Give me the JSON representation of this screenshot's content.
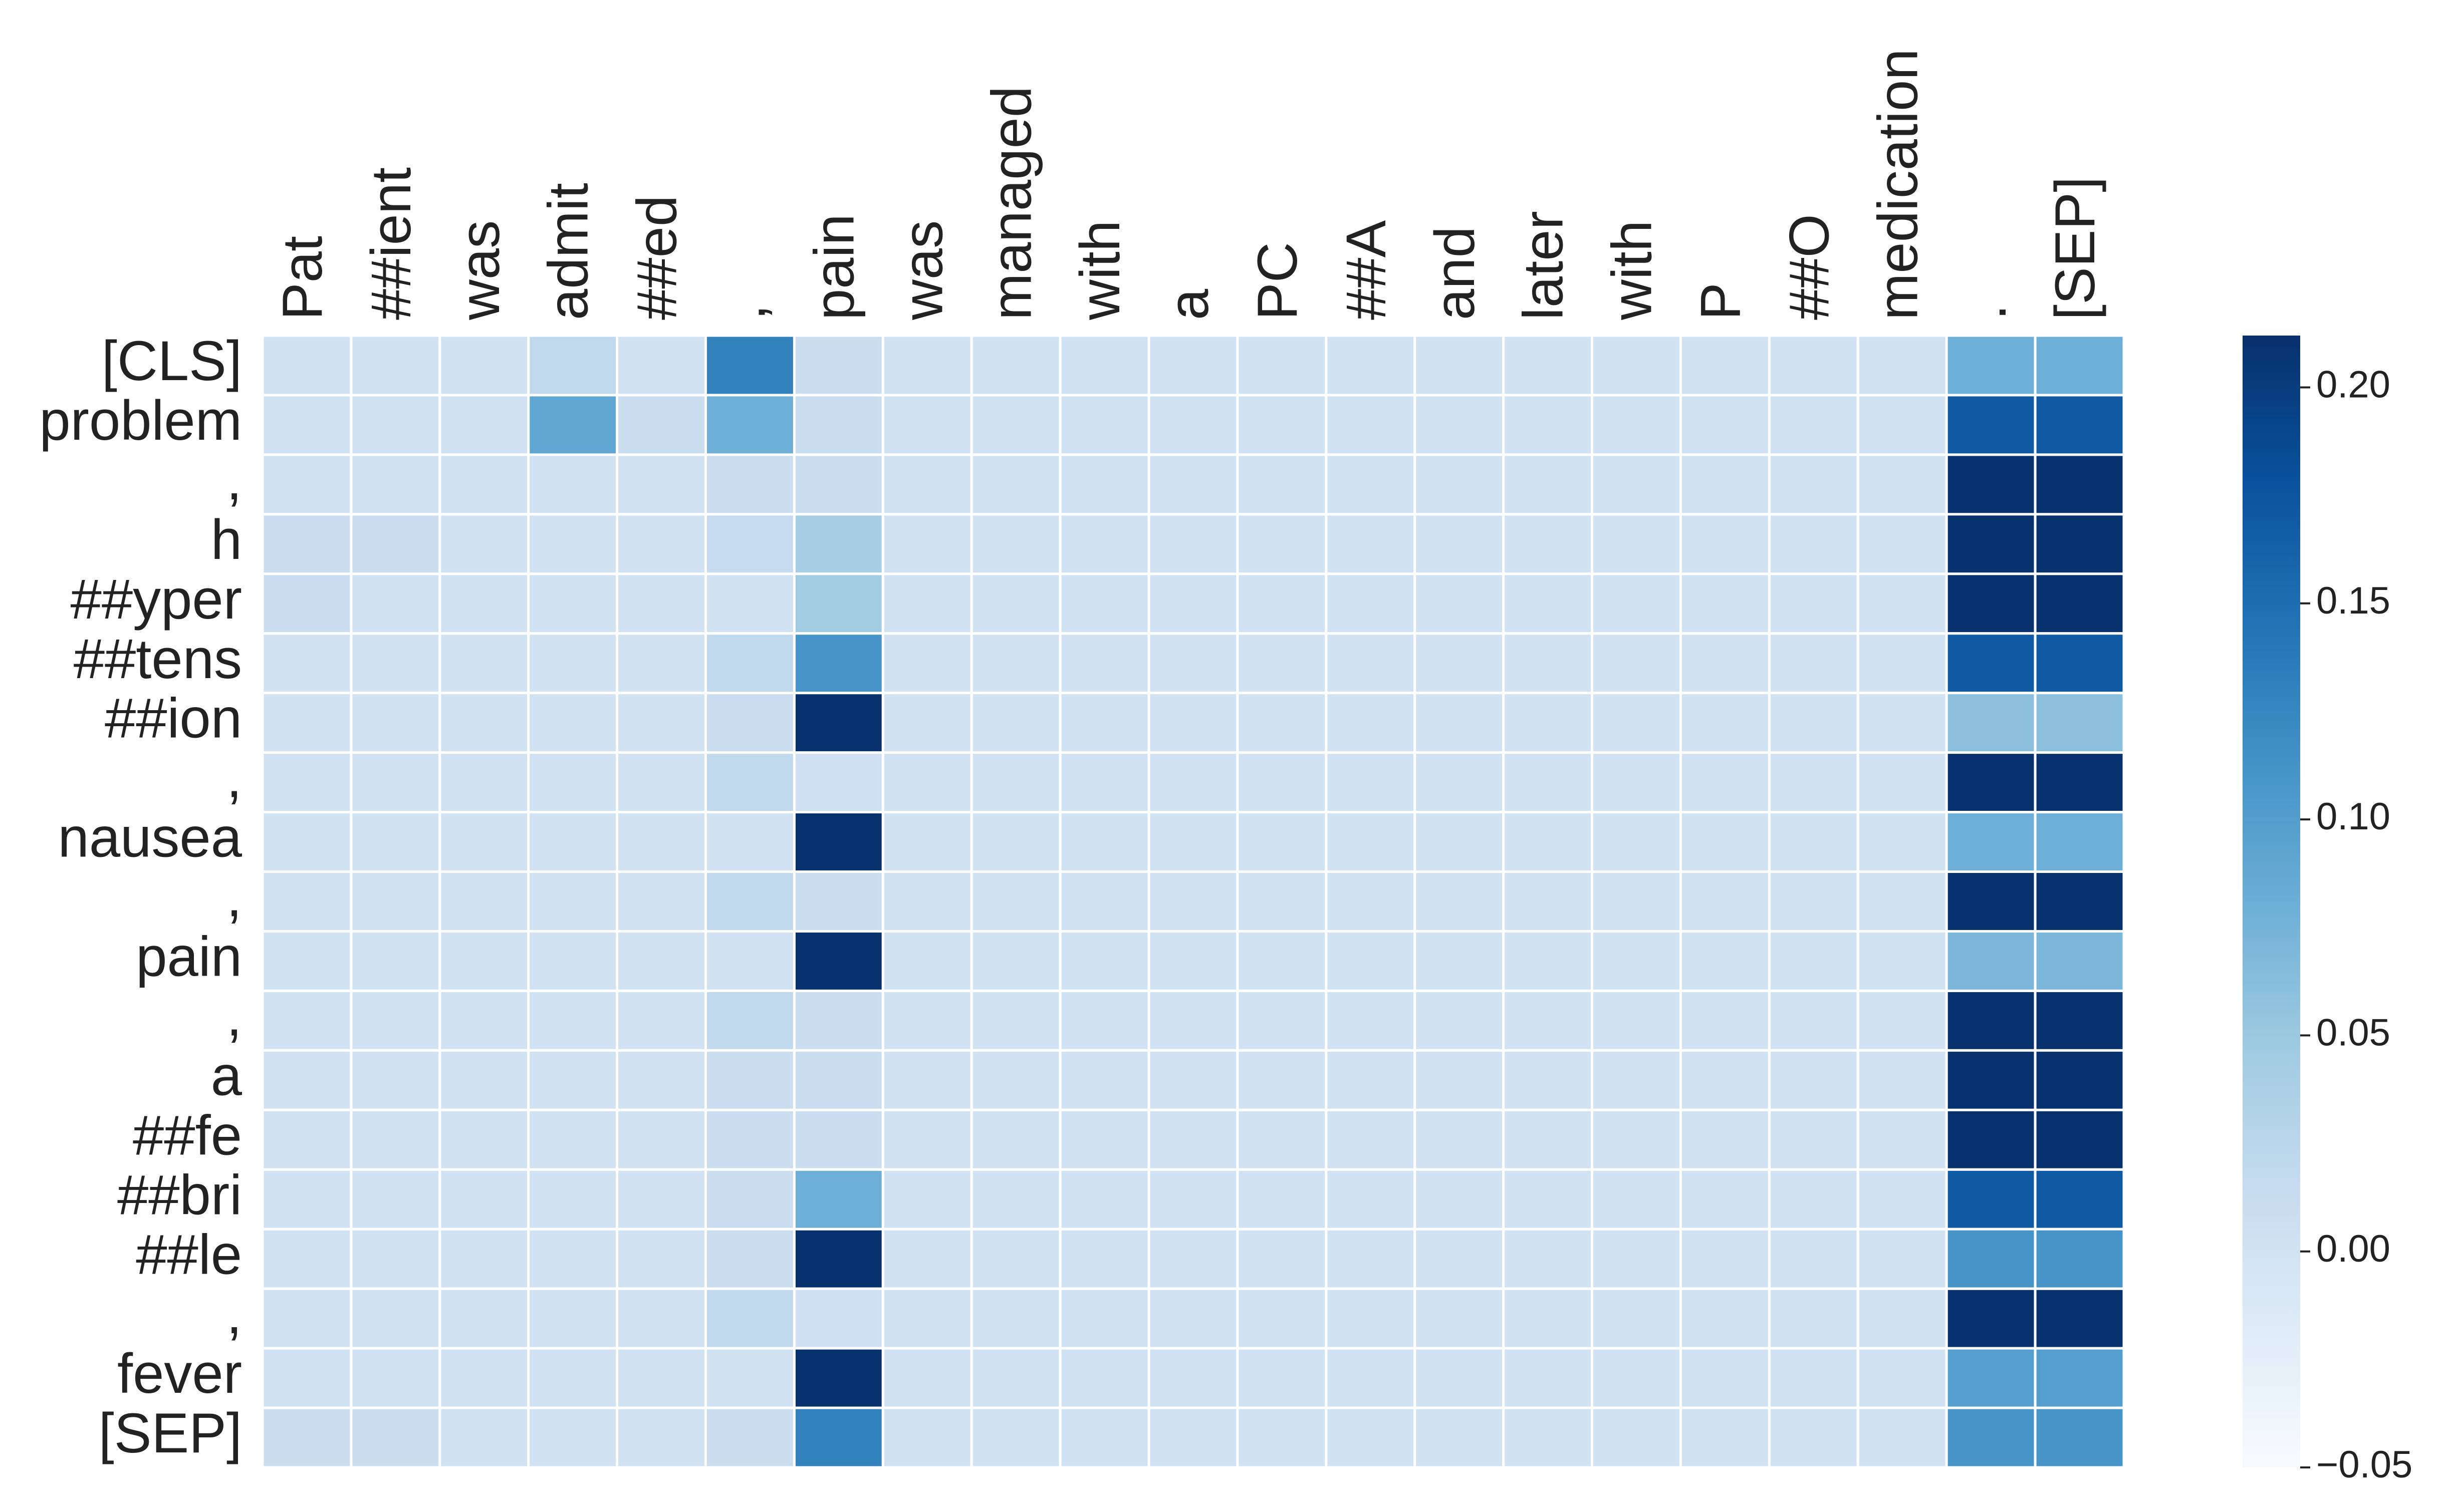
{
  "chart_data": {
    "type": "heatmap",
    "x_categories": [
      "Pat",
      "##ient",
      "was",
      "admit",
      "##ed",
      ",",
      "pain",
      "was",
      "managed",
      "with",
      "a",
      "PC",
      "##A",
      "and",
      "later",
      "with",
      "P",
      "##O",
      "medication",
      ".",
      "[SEP]"
    ],
    "y_categories": [
      "[CLS]",
      "problem",
      ",",
      "h",
      "##yper",
      "##tens",
      "##ion",
      ",",
      "nausea",
      ",",
      "pain",
      ",",
      "a",
      "##fe",
      "##bri",
      "##le",
      ",",
      "fever",
      "[SEP]"
    ],
    "values": [
      [
        0,
        0,
        0,
        0.02,
        0,
        0.13,
        0.01,
        0,
        0,
        0,
        0,
        0,
        0,
        0,
        0,
        0,
        0,
        0,
        0,
        0.08,
        0.08
      ],
      [
        0,
        0,
        0,
        0.09,
        0.01,
        0.08,
        0.01,
        0,
        0,
        0,
        0,
        0,
        0,
        0,
        0,
        0,
        0,
        0,
        0,
        0.17,
        0.17
      ],
      [
        0,
        0,
        0,
        0,
        0,
        0.01,
        0.01,
        0,
        0,
        0,
        0,
        0,
        0,
        0,
        0,
        0,
        0,
        0,
        0,
        0.21,
        0.21
      ],
      [
        0.01,
        0.01,
        0,
        0,
        0,
        0.015,
        0.04,
        0,
        0,
        0,
        0,
        0,
        0,
        0,
        0,
        0,
        0,
        0,
        0,
        0.21,
        0.21
      ],
      [
        0.01,
        0,
        0,
        0,
        0,
        0,
        0.045,
        0,
        0,
        0,
        0,
        0,
        0,
        0,
        0,
        0,
        0,
        0,
        0,
        0.21,
        0.21
      ],
      [
        0,
        0,
        0,
        0,
        0,
        0.02,
        0.11,
        0,
        0,
        0,
        0,
        0,
        0,
        0,
        0,
        0,
        0,
        0,
        0,
        0.17,
        0.17
      ],
      [
        0,
        0,
        0,
        0,
        0,
        0.01,
        0.21,
        0,
        0,
        0,
        0,
        0,
        0,
        0,
        0,
        0,
        0,
        0,
        0,
        0.06,
        0.06
      ],
      [
        0,
        0,
        0,
        0,
        0,
        0.02,
        0.005,
        0,
        0,
        0,
        0,
        0,
        0,
        0,
        0,
        0,
        0,
        0,
        0,
        0.21,
        0.21
      ],
      [
        0,
        0,
        0,
        0,
        0,
        0,
        0.21,
        0,
        0,
        0,
        0,
        0,
        0,
        0,
        0,
        0,
        0,
        0,
        0,
        0.08,
        0.08
      ],
      [
        0,
        0,
        0,
        0,
        0,
        0.02,
        0.01,
        0,
        0,
        0,
        0,
        0,
        0,
        0,
        0,
        0,
        0,
        0,
        0,
        0.21,
        0.21
      ],
      [
        0,
        0,
        0,
        0,
        0,
        0,
        0.21,
        0,
        0,
        0,
        0,
        0,
        0,
        0,
        0,
        0,
        0,
        0,
        0,
        0.07,
        0.07
      ],
      [
        0,
        0,
        0,
        0,
        0,
        0.02,
        0.01,
        0,
        0,
        0,
        0,
        0,
        0,
        0,
        0,
        0,
        0,
        0,
        0,
        0.21,
        0.21
      ],
      [
        0,
        0,
        0,
        0,
        0,
        0.01,
        0.01,
        0,
        0,
        0,
        0,
        0,
        0,
        0,
        0,
        0,
        0,
        0,
        0,
        0.21,
        0.21
      ],
      [
        0,
        0,
        0,
        0,
        0,
        0.01,
        0.01,
        0,
        0,
        0,
        0,
        0,
        0,
        0,
        0,
        0,
        0,
        0,
        0,
        0.21,
        0.21
      ],
      [
        0,
        0,
        0,
        0,
        0,
        0.01,
        0.08,
        0,
        0,
        0,
        0,
        0,
        0,
        0,
        0,
        0,
        0,
        0,
        0,
        0.17,
        0.17
      ],
      [
        0,
        0,
        0,
        0,
        0,
        0.01,
        0.21,
        0,
        0,
        0,
        0,
        0,
        0,
        0,
        0,
        0,
        0,
        0,
        0,
        0.11,
        0.11
      ],
      [
        0,
        0,
        0,
        0,
        0,
        0.02,
        0.005,
        0,
        0,
        0,
        0,
        0,
        0,
        0,
        0,
        0,
        0,
        0,
        0,
        0.21,
        0.21
      ],
      [
        0,
        0,
        0,
        0,
        0,
        0,
        0.21,
        0,
        0,
        0,
        0,
        0,
        0,
        0,
        0,
        0,
        0,
        0,
        0,
        0.1,
        0.1
      ],
      [
        0.01,
        0.01,
        0,
        0,
        0,
        0.01,
        0.13,
        0,
        0,
        0,
        0,
        0,
        0,
        0,
        0,
        0,
        0,
        0,
        0,
        0.11,
        0.11
      ]
    ],
    "colormap": [
      "#f7fbff",
      "#deebf7",
      "#c6dbef",
      "#9ecae1",
      "#6baed6",
      "#4292c6",
      "#2171b5",
      "#08519c",
      "#08306b"
    ],
    "clim": [
      -0.05,
      0.212
    ],
    "cticks": [
      {
        "value": -0.05,
        "label": "−0.05"
      },
      {
        "value": 0,
        "label": "0.00"
      },
      {
        "value": 0.05,
        "label": "0.05"
      },
      {
        "value": 0.1,
        "label": "0.10"
      },
      {
        "value": 0.15,
        "label": "0.15"
      },
      {
        "value": 0.2,
        "label": "0.20"
      }
    ]
  }
}
